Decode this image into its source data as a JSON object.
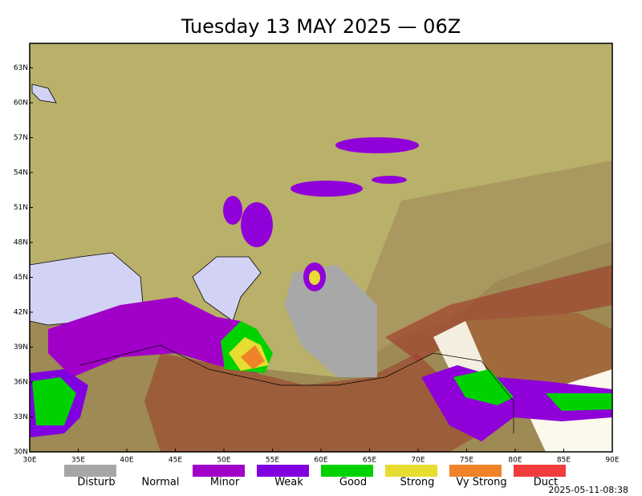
{
  "title": "Tuesday 13 MAY 2025 — 06Z",
  "lat_labels": [
    "30N",
    "33N",
    "36N",
    "39N",
    "42N",
    "45N",
    "48N",
    "51N",
    "54N",
    "57N",
    "60N",
    "63N"
  ],
  "lon_labels": [
    "30E",
    "35E",
    "40E",
    "45E",
    "50E",
    "55E",
    "60E",
    "65E",
    "70E",
    "75E",
    "80E",
    "85E",
    "90E"
  ],
  "legend": [
    {
      "label": "Disturb",
      "color": "#a6a6a6"
    },
    {
      "label": "Normal",
      "color": "#ffffff"
    },
    {
      "label": "Minor",
      "color": "#a000c8"
    },
    {
      "label": "Weak",
      "color": "#8000e0"
    },
    {
      "label": "Good",
      "color": "#00d200"
    },
    {
      "label": "Strong",
      "color": "#e6dc32"
    },
    {
      "label": "Vy Strong",
      "color": "#f08228"
    },
    {
      "label": "Duct",
      "color": "#f03c3c"
    }
  ],
  "timestamp": "2025-05-11-08:38"
}
